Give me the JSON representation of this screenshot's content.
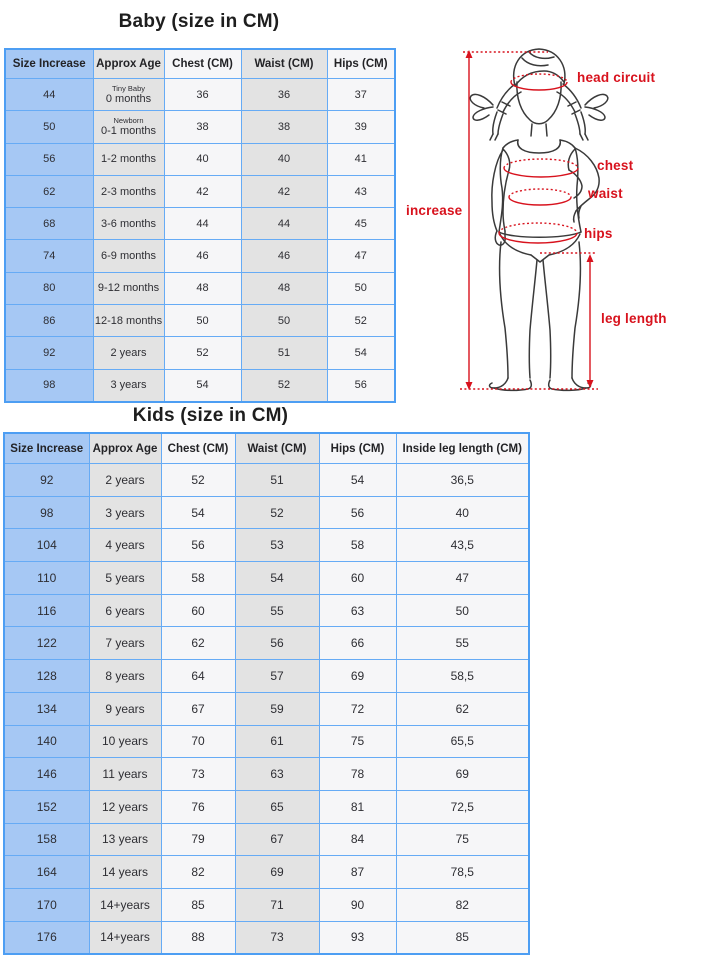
{
  "colors": {
    "blue_cell": "#a6c8f4",
    "gray_cell": "#e3e3e3",
    "light_cell": "#f6f6f8",
    "table_border": "#66abf5",
    "annotation_red": "#d8121d"
  },
  "baby_section": {
    "title": "Baby (size in CM)",
    "table": {
      "headers": [
        "Size Increase",
        "Approx Age",
        "Chest (CM)",
        "Waist (CM)",
        "Hips (CM)"
      ],
      "rows": [
        [
          "44",
          {
            "note": "Tiny Baby",
            "main": "0 months"
          },
          "36",
          "36",
          "37"
        ],
        [
          "50",
          {
            "note": "Newborn",
            "main": "0-1 months"
          },
          "38",
          "38",
          "39"
        ],
        [
          "56",
          "1-2 months",
          "40",
          "40",
          "41"
        ],
        [
          "62",
          "2-3 months",
          "42",
          "42",
          "43"
        ],
        [
          "68",
          "3-6 months",
          "44",
          "44",
          "45"
        ],
        [
          "74",
          "6-9 months",
          "46",
          "46",
          "47"
        ],
        [
          "80",
          "9-12 months",
          "48",
          "48",
          "50"
        ],
        [
          "86",
          "12-18 months",
          "50",
          "50",
          "52"
        ],
        [
          "92",
          "2 years",
          "52",
          "51",
          "54"
        ],
        [
          "98",
          "3 years",
          "54",
          "52",
          "56"
        ]
      ]
    }
  },
  "kids_section": {
    "title": "Kids (size in CM)",
    "table": {
      "headers": [
        "Size Increase",
        "Approx Age",
        "Chest (CM)",
        "Waist (CM)",
        "Hips (CM)",
        "Inside leg length (CM)"
      ],
      "rows": [
        [
          "92",
          "2 years",
          "52",
          "51",
          "54",
          "36,5"
        ],
        [
          "98",
          "3 years",
          "54",
          "52",
          "56",
          "40"
        ],
        [
          "104",
          "4 years",
          "56",
          "53",
          "58",
          "43,5"
        ],
        [
          "110",
          "5 years",
          "58",
          "54",
          "60",
          "47"
        ],
        [
          "116",
          "6 years",
          "60",
          "55",
          "63",
          "50"
        ],
        [
          "122",
          "7 years",
          "62",
          "56",
          "66",
          "55"
        ],
        [
          "128",
          "8 years",
          "64",
          "57",
          "69",
          "58,5"
        ],
        [
          "134",
          "9 years",
          "67",
          "59",
          "72",
          "62"
        ],
        [
          "140",
          "10 years",
          "70",
          "61",
          "75",
          "65,5"
        ],
        [
          "146",
          "11 years",
          "73",
          "63",
          "78",
          "69"
        ],
        [
          "152",
          "12 years",
          "76",
          "65",
          "81",
          "72,5"
        ],
        [
          "158",
          "13 years",
          "79",
          "67",
          "84",
          "75"
        ],
        [
          "164",
          "14 years",
          "82",
          "69",
          "87",
          "78,5"
        ],
        [
          "170",
          "14+years",
          "85",
          "71",
          "90",
          "82"
        ],
        [
          "176",
          "14+years",
          "88",
          "73",
          "93",
          "85"
        ]
      ]
    }
  },
  "figure": {
    "labels": {
      "head_circuit": "head circuit",
      "chest": "chest",
      "waist": "waist",
      "increase": "increase",
      "hips": "hips",
      "leg_length": "leg length"
    }
  }
}
